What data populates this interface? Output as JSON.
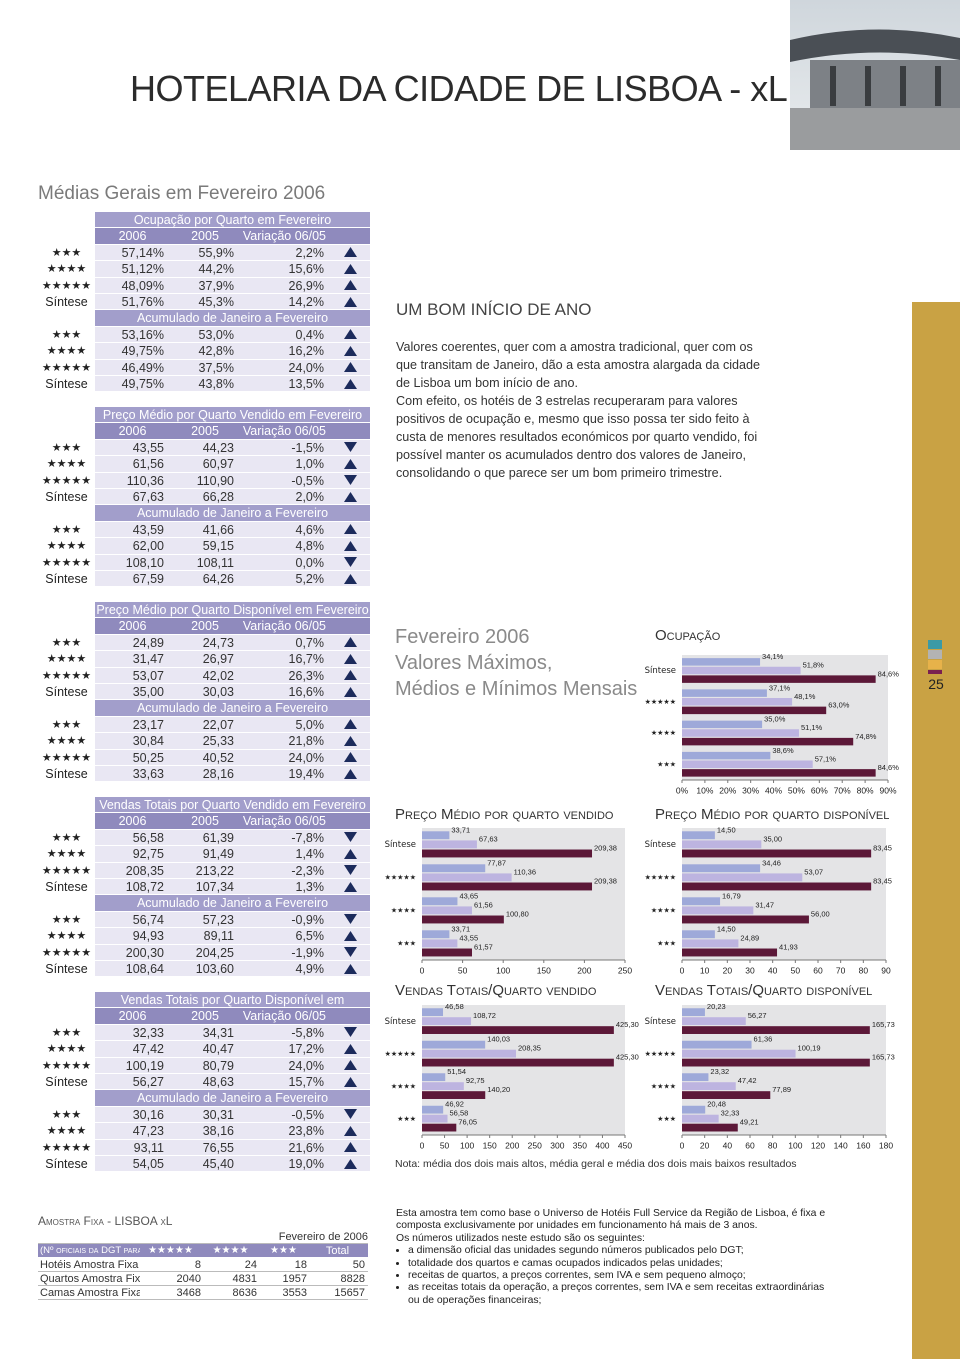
{
  "header": {
    "title": "HOTELARIA DA CIDADE DE LISBOA - xL"
  },
  "section_title": "Médias Gerais em Fevereiro 2006",
  "tables": [
    {
      "title": "Ocupação por Quarto em Fevereiro",
      "columns": [
        "2006",
        "2005",
        "Variação 06/05"
      ],
      "rows": [
        {
          "label": "★★★",
          "values": [
            "57,14%",
            "55,9%",
            "2,2%"
          ],
          "trend": "up"
        },
        {
          "label": "★★★★",
          "values": [
            "51,12%",
            "44,2%",
            "15,6%"
          ],
          "trend": "up"
        },
        {
          "label": "★★★★★",
          "values": [
            "48,09%",
            "37,9%",
            "26,9%"
          ],
          "trend": "up"
        },
        {
          "label": "Síntese",
          "values": [
            "51,76%",
            "45,3%",
            "14,2%"
          ],
          "trend": "up"
        }
      ],
      "cumulative_title": "Acumulado de Janeiro a Fevereiro",
      "cumulative_rows": [
        {
          "label": "★★★",
          "values": [
            "53,16%",
            "53,0%",
            "0,4%"
          ],
          "trend": "up"
        },
        {
          "label": "★★★★",
          "values": [
            "49,75%",
            "42,8%",
            "16,2%"
          ],
          "trend": "up"
        },
        {
          "label": "★★★★★",
          "values": [
            "46,49%",
            "37,5%",
            "24,0%"
          ],
          "trend": "up"
        },
        {
          "label": "Síntese",
          "values": [
            "49,75%",
            "43,8%",
            "13,5%"
          ],
          "trend": "up"
        }
      ]
    },
    {
      "title": "Preço Médio por Quarto Vendido em Fevereiro",
      "columns": [
        "2006",
        "2005",
        "Variação 06/05"
      ],
      "rows": [
        {
          "label": "★★★",
          "values": [
            "43,55",
            "44,23",
            "-1,5%"
          ],
          "trend": "down"
        },
        {
          "label": "★★★★",
          "values": [
            "61,56",
            "60,97",
            "1,0%"
          ],
          "trend": "up"
        },
        {
          "label": "★★★★★",
          "values": [
            "110,36",
            "110,90",
            "-0,5%"
          ],
          "trend": "down"
        },
        {
          "label": "Síntese",
          "values": [
            "67,63",
            "66,28",
            "2,0%"
          ],
          "trend": "up"
        }
      ],
      "cumulative_title": "Acumulado de Janeiro a Fevereiro",
      "cumulative_rows": [
        {
          "label": "★★★",
          "values": [
            "43,59",
            "41,66",
            "4,6%"
          ],
          "trend": "up"
        },
        {
          "label": "★★★★",
          "values": [
            "62,00",
            "59,15",
            "4,8%"
          ],
          "trend": "up"
        },
        {
          "label": "★★★★★",
          "values": [
            "108,10",
            "108,11",
            "0,0%"
          ],
          "trend": "down"
        },
        {
          "label": "Síntese",
          "values": [
            "67,59",
            "64,26",
            "5,2%"
          ],
          "trend": "up"
        }
      ]
    },
    {
      "title": "Preço Médio por Quarto Disponível em Fevereiro",
      "columns": [
        "2006",
        "2005",
        "Variação 06/05"
      ],
      "rows": [
        {
          "label": "★★★",
          "values": [
            "24,89",
            "24,73",
            "0,7%"
          ],
          "trend": "up"
        },
        {
          "label": "★★★★",
          "values": [
            "31,47",
            "26,97",
            "16,7%"
          ],
          "trend": "up"
        },
        {
          "label": "★★★★★",
          "values": [
            "53,07",
            "42,02",
            "26,3%"
          ],
          "trend": "up"
        },
        {
          "label": "Síntese",
          "values": [
            "35,00",
            "30,03",
            "16,6%"
          ],
          "trend": "up"
        }
      ],
      "cumulative_title": "Acumulado de Janeiro a Fevereiro",
      "cumulative_rows": [
        {
          "label": "★★★",
          "values": [
            "23,17",
            "22,07",
            "5,0%"
          ],
          "trend": "up"
        },
        {
          "label": "★★★★",
          "values": [
            "30,84",
            "25,33",
            "21,8%"
          ],
          "trend": "up"
        },
        {
          "label": "★★★★★",
          "values": [
            "50,25",
            "40,52",
            "24,0%"
          ],
          "trend": "up"
        },
        {
          "label": "Síntese",
          "values": [
            "33,63",
            "28,16",
            "19,4%"
          ],
          "trend": "up"
        }
      ]
    },
    {
      "title": "Vendas Totais por Quarto Vendido em Fevereiro",
      "columns": [
        "2006",
        "2005",
        "Variação 06/05"
      ],
      "rows": [
        {
          "label": "★★★",
          "values": [
            "56,58",
            "61,39",
            "-7,8%"
          ],
          "trend": "down"
        },
        {
          "label": "★★★★",
          "values": [
            "92,75",
            "91,49",
            "1,4%"
          ],
          "trend": "up"
        },
        {
          "label": "★★★★★",
          "values": [
            "208,35",
            "213,22",
            "-2,3%"
          ],
          "trend": "down"
        },
        {
          "label": "Síntese",
          "values": [
            "108,72",
            "107,34",
            "1,3%"
          ],
          "trend": "up"
        }
      ],
      "cumulative_title": "Acumulado de Janeiro a Fevereiro",
      "cumulative_rows": [
        {
          "label": "★★★",
          "values": [
            "56,74",
            "57,23",
            "-0,9%"
          ],
          "trend": "down"
        },
        {
          "label": "★★★★",
          "values": [
            "94,93",
            "89,11",
            "6,5%"
          ],
          "trend": "up"
        },
        {
          "label": "★★★★★",
          "values": [
            "200,30",
            "204,25",
            "-1,9%"
          ],
          "trend": "down"
        },
        {
          "label": "Síntese",
          "values": [
            "108,64",
            "103,60",
            "4,9%"
          ],
          "trend": "up"
        }
      ]
    },
    {
      "title": "Vendas Totais por Quarto Disponível em Fevereiro",
      "columns": [
        "2006",
        "2005",
        "Variação 06/05"
      ],
      "rows": [
        {
          "label": "★★★",
          "values": [
            "32,33",
            "34,31",
            "-5,8%"
          ],
          "trend": "down"
        },
        {
          "label": "★★★★",
          "values": [
            "47,42",
            "40,47",
            "17,2%"
          ],
          "trend": "up"
        },
        {
          "label": "★★★★★",
          "values": [
            "100,19",
            "80,79",
            "24,0%"
          ],
          "trend": "up"
        },
        {
          "label": "Síntese",
          "values": [
            "56,27",
            "48,63",
            "15,7%"
          ],
          "trend": "up"
        }
      ],
      "cumulative_title": "Acumulado de Janeiro a Fevereiro",
      "cumulative_rows": [
        {
          "label": "★★★",
          "values": [
            "30,16",
            "30,31",
            "-0,5%"
          ],
          "trend": "down"
        },
        {
          "label": "★★★★",
          "values": [
            "47,23",
            "38,16",
            "23,8%"
          ],
          "trend": "up"
        },
        {
          "label": "★★★★★",
          "values": [
            "93,11",
            "76,55",
            "21,6%"
          ],
          "trend": "up"
        },
        {
          "label": "Síntese",
          "values": [
            "54,05",
            "45,40",
            "19,0%"
          ],
          "trend": "up"
        }
      ]
    }
  ],
  "article": {
    "heading": "UM BOM INÍCIO DE ANO",
    "paragraphs": [
      "Valores coerentes, quer com a amostra tradicional, quer com os que transitam de Janeiro, dão a esta amostra alargada da cidade de Lisboa um bom início de ano.",
      "Com efeito, os hotéis de 3 estrelas recuperaram para valores positivos de ocupação e, mesmo que isso possa ter sido feito à custa de menores resultados económicos por quarto vendido, foi possível manter os acumulados dentro dos valores de Janeiro, consolidando o que parece ser um bom primeiro trimestre."
    ]
  },
  "charts_heading": [
    "Fevereiro 2006",
    "Valores Máximos,",
    "Médios e Mínimos Mensais"
  ],
  "chart_data": [
    {
      "type": "bar",
      "orientation": "horizontal",
      "title": "Ocupação",
      "categories": [
        "Síntese",
        "★★★★★",
        "★★★★",
        "★★★"
      ],
      "series": [
        {
          "color": "#9ea9d9",
          "values": [
            34.1,
            37.1,
            35.0,
            38.6
          ],
          "value_labels": [
            "34,1%",
            "37,1%",
            "35,0%",
            "38,6%"
          ]
        },
        {
          "color": "#bdb4e0",
          "values": [
            51.8,
            48.1,
            51.1,
            57.1
          ],
          "value_labels": [
            "51,8%",
            "48,1%",
            "51,1%",
            "57,1%"
          ]
        },
        {
          "color": "#5c1838",
          "values": [
            84.6,
            63.0,
            74.8,
            84.6
          ],
          "value_labels": [
            "84,6%",
            "63,0%",
            "74,8%",
            "84,6%"
          ]
        }
      ],
      "xlim": [
        0,
        90
      ],
      "xticks": [
        {
          "value": 0,
          "label": "0%"
        },
        {
          "value": 10,
          "label": "10%"
        },
        {
          "value": 20,
          "label": "20%"
        },
        {
          "value": 30,
          "label": "30%"
        },
        {
          "value": 40,
          "label": "40%"
        },
        {
          "value": 50,
          "label": "50%"
        },
        {
          "value": 60,
          "label": "60%"
        },
        {
          "value": 70,
          "label": "70%"
        },
        {
          "value": 80,
          "label": "80%"
        },
        {
          "value": 90,
          "label": "90%"
        }
      ]
    },
    {
      "type": "bar",
      "orientation": "horizontal",
      "title": "Preço Médio por quarto vendido",
      "categories": [
        "Síntese",
        "★★★★★",
        "★★★★",
        "★★★"
      ],
      "series": [
        {
          "color": "#9ea9d9",
          "values": [
            33.71,
            77.87,
            43.65,
            33.71
          ],
          "value_labels": [
            "33,71",
            "77,87",
            "43,65",
            "33,71"
          ]
        },
        {
          "color": "#bdb4e0",
          "values": [
            67.63,
            110.36,
            61.56,
            43.55
          ],
          "value_labels": [
            "67,63",
            "110,36",
            "61,56",
            "43,55"
          ]
        },
        {
          "color": "#5c1838",
          "values": [
            209.38,
            209.38,
            100.8,
            61.57
          ],
          "value_labels": [
            "209,38",
            "209,38",
            "100,80",
            "61,57"
          ]
        }
      ],
      "xlim": [
        0,
        250
      ],
      "xticks": [
        0,
        50,
        100,
        150,
        200,
        250
      ]
    },
    {
      "type": "bar",
      "orientation": "horizontal",
      "title": "Preço Médio por quarto disponível",
      "categories": [
        "Síntese",
        "★★★★★",
        "★★★★",
        "★★★"
      ],
      "series": [
        {
          "color": "#9ea9d9",
          "values": [
            14.5,
            34.46,
            16.79,
            14.5
          ],
          "value_labels": [
            "14,50",
            "34,46",
            "16,79",
            "14,50"
          ]
        },
        {
          "color": "#bdb4e0",
          "values": [
            35.0,
            53.07,
            31.47,
            24.89
          ],
          "value_labels": [
            "35,00",
            "53,07",
            "31,47",
            "24,89"
          ]
        },
        {
          "color": "#5c1838",
          "values": [
            83.45,
            83.45,
            56.0,
            41.93
          ],
          "value_labels": [
            "83,45",
            "83,45",
            "56,00",
            "41,93"
          ]
        }
      ],
      "xlim": [
        0,
        90
      ],
      "xticks": [
        0,
        10,
        20,
        30,
        40,
        50,
        60,
        70,
        80,
        90
      ]
    },
    {
      "type": "bar",
      "orientation": "horizontal",
      "title": "Vendas Totais/Quarto vendido",
      "categories": [
        "Síntese",
        "★★★★★",
        "★★★★",
        "★★★"
      ],
      "series": [
        {
          "color": "#9ea9d9",
          "values": [
            46.58,
            140.03,
            51.54,
            46.92
          ],
          "value_labels": [
            "46,58",
            "140,03",
            "51,54",
            "46,92"
          ]
        },
        {
          "color": "#bdb4e0",
          "values": [
            108.72,
            208.35,
            92.75,
            56.58
          ],
          "value_labels": [
            "108,72",
            "208,35",
            "92,75",
            "56,58"
          ]
        },
        {
          "color": "#5c1838",
          "values": [
            425.3,
            425.3,
            140.2,
            76.05
          ],
          "value_labels": [
            "425,30",
            "425,30",
            "140,20",
            "76,05"
          ]
        }
      ],
      "xlim": [
        0,
        450
      ],
      "xticks": [
        0,
        50,
        100,
        150,
        200,
        250,
        300,
        350,
        400,
        450
      ]
    },
    {
      "type": "bar",
      "orientation": "horizontal",
      "title": "Vendas Totais/Quarto disponível",
      "categories": [
        "Síntese",
        "★★★★★",
        "★★★★",
        "★★★"
      ],
      "series": [
        {
          "color": "#9ea9d9",
          "values": [
            20.23,
            61.36,
            23.32,
            20.48
          ],
          "value_labels": [
            "20,23",
            "61,36",
            "23,32",
            "20,48"
          ]
        },
        {
          "color": "#bdb4e0",
          "values": [
            56.27,
            100.19,
            47.42,
            32.33
          ],
          "value_labels": [
            "56,27",
            "100,19",
            "47,42",
            "32,33"
          ]
        },
        {
          "color": "#5c1838",
          "values": [
            165.73,
            165.73,
            77.89,
            49.21
          ],
          "value_labels": [
            "165,73",
            "165,73",
            "77,89",
            "49,21"
          ]
        }
      ],
      "xlim": [
        0,
        180
      ],
      "xticks": [
        0,
        20,
        40,
        60,
        80,
        100,
        120,
        140,
        160,
        180
      ]
    }
  ],
  "note": "Nota: média dos dois mais altos, média geral e média dos dois mais baixos resultados",
  "sample": {
    "title": "Amostra Fixa - LISBOA xL",
    "date": "Fevereiro de 2006",
    "columns": [
      "(Nº oficiais da DGT para o ano)",
      "★★★★★",
      "★★★★",
      "★★★",
      "Total"
    ],
    "rows": [
      [
        "Hotéis Amostra Fixa",
        "8",
        "24",
        "18",
        "50"
      ],
      [
        "Quartos Amostra Fixa",
        "2040",
        "4831",
        "1957",
        "8828"
      ],
      [
        "Camas Amostra Fixa",
        "3468",
        "8636",
        "3553",
        "15657"
      ]
    ]
  },
  "footnote": {
    "intro": [
      "Esta amostra tem como base o Universo de Hotéis Full Service da Região de Lisboa, é fixa e composta exclusivamente por unidades em funcionamento há mais de 3 anos.",
      "Os números utilizados neste estudo são os seguintes:"
    ],
    "bullets": [
      "a dimensão oficial das unidades segundo números publicados pelo DGT;",
      "totalidade dos quartos e camas ocupados indicados pelas unidades;",
      "receitas de quartos, a preços correntes, sem IVA e sem pequeno almoço;",
      "as receitas totais da operação, a preços correntes, sem IVA e sem receitas extraordinárias ou de operações financeiras;"
    ]
  },
  "page_number": "25"
}
